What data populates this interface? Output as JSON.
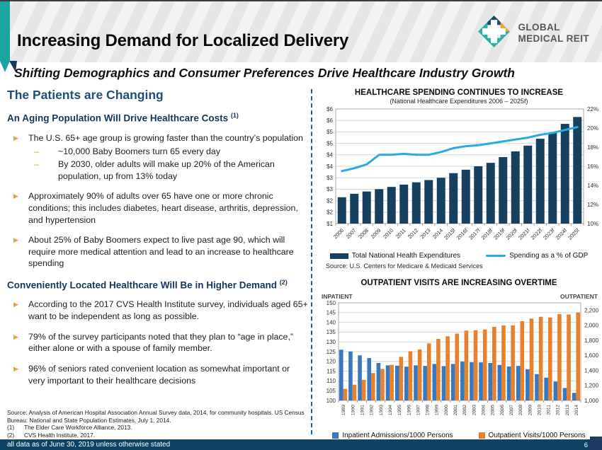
{
  "header": {
    "title": "Increasing Demand for Localized Delivery",
    "logo_line1": "GLOBAL",
    "logo_line2": "MEDICAL REIT"
  },
  "subtitle": "Shifting Demographics and Consumer Preferences Drive Healthcare Industry Growth",
  "left_panel": {
    "heading": "The Patients are Changing",
    "sections": [
      {
        "heading": "An Aging Population Will Drive Healthcare Costs",
        "sup": "(1)",
        "bullets": [
          {
            "text": "The U.S. 65+ age group is growing faster than the country’s population",
            "sub": [
              "~10,000 Baby Boomers turn 65 every day",
              "By 2030, older adults will make up 20% of the American population, up from 13% today"
            ]
          },
          {
            "text": "Approximately 90% of adults over 65 have one or more chronic conditions; this includes diabetes, heart disease, arthritis, depression, and hypertension",
            "sub": []
          },
          {
            "text": "About 25% of Baby Boomers expect to live past age 90, which will require more medical attention and lead to an increase to healthcare spending",
            "sub": []
          }
        ]
      },
      {
        "heading": "Conveniently Located Healthcare Will Be in Higher Demand",
        "sup": "(2)",
        "bullets": [
          {
            "text": "According to the 2017 CVS Health Institute survey, individuals aged 65+ want to be independent as long as possible.",
            "sub": []
          },
          {
            "text": "79% of the survey participants noted that they plan to “age in place,” either alone or with a spouse of family member.",
            "sub": []
          },
          {
            "text": "96% of seniors rated convenient location as somewhat important or very important to their healthcare decisions",
            "sub": []
          }
        ]
      }
    ],
    "sources": {
      "intro": "Source: Analysis of American Hospital Association Annual Survey data, 2014, for community hospitals. US Census Bureau: National and State Population Estimates, July 1, 2014.",
      "notes": [
        {
          "num": "(1)",
          "text": "The Elder Care Workforce Alliance, 2013."
        },
        {
          "num": "(2)",
          "text": "CVS Health Institute, 2017."
        }
      ]
    }
  },
  "footer": {
    "text": "all data as of June 30, 2019 unless otherwise stated",
    "page": "6"
  },
  "colors": {
    "accent_teal": "#1ba5a0",
    "heading_navy": "#1f4e79",
    "bullet_orange": "#e9a13b",
    "chart1_bar": "#16405e",
    "chart1_line": "#29abe2",
    "chart2_blue": "#3778be",
    "chart2_orange": "#e8812d",
    "footer_bg": "#0e4365"
  },
  "chart_data": [
    {
      "type": "bar+line",
      "title": "HEALTHCARE SPENDING CONTINUES TO INCREASE",
      "subtitle": "(National Healthcare Expenditures 2006 – 2025f)",
      "source": "Source:  U.S. Centers for Medicare & Medicaid Services",
      "categories": [
        "2006",
        "2007",
        "2008",
        "2009",
        "2010",
        "2011",
        "2012",
        "2013",
        "2014",
        "2015f",
        "2016f",
        "2017f",
        "2018f",
        "2019f",
        "2020f",
        "2021f",
        "2022f",
        "2023f",
        "2024f",
        "2025f"
      ],
      "series": [
        {
          "name": "Total National Health Expenditures",
          "type": "bar",
          "axis": "left",
          "color": "#16405e",
          "values": [
            2.15,
            2.3,
            2.4,
            2.5,
            2.6,
            2.7,
            2.8,
            2.9,
            3.0,
            3.2,
            3.35,
            3.5,
            3.65,
            3.9,
            4.15,
            4.4,
            4.7,
            4.95,
            5.35,
            5.65
          ]
        },
        {
          "name": "Spending as a % of GDP",
          "type": "line",
          "axis": "right",
          "color": "#29abe2",
          "values": [
            15.5,
            15.8,
            16.2,
            17.2,
            17.2,
            17.3,
            17.2,
            17.2,
            17.5,
            17.9,
            18.1,
            18.2,
            18.4,
            18.6,
            18.8,
            19.0,
            19.3,
            19.5,
            19.8,
            20.1
          ]
        }
      ],
      "left_axis": {
        "min": 1,
        "max": 6,
        "step": 0.5,
        "unit": "$ trillions",
        "labels": [
          "$6",
          "$6",
          "$5",
          "$5",
          "$4",
          "$4",
          "$3",
          "$3",
          "$2",
          "$2",
          "$1"
        ]
      },
      "right_axis": {
        "min": 10,
        "max": 22,
        "step": 2,
        "labels": [
          "22%",
          "20%",
          "18%",
          "16%",
          "14%",
          "12%",
          "10%"
        ],
        "label_values": [
          22,
          20,
          18,
          16,
          14,
          12,
          10
        ]
      },
      "legend_position": "bottom",
      "grid": true
    },
    {
      "type": "bar",
      "title": "OUTPATIENT VISITS ARE INCREASING OVERTIME",
      "left_label": "INPATIENT",
      "right_label": "OUTPATIENT",
      "categories": [
        "1989",
        "1990",
        "1991",
        "1992",
        "1993",
        "1994",
        "1995",
        "1996",
        "1997",
        "1998",
        "1999",
        "2000",
        "2001",
        "2002",
        "2003",
        "2004",
        "2005",
        "2006",
        "2007",
        "2008",
        "2009",
        "2010",
        "2011",
        "2012",
        "2013",
        "2014"
      ],
      "series": [
        {
          "name": "Inpatient Admissions/1000 Persons",
          "type": "bar",
          "axis": "left",
          "color": "#3778be",
          "values": [
            126,
            125.1,
            123.1,
            121.7,
            119.2,
            118,
            117.8,
            117.3,
            118,
            117.7,
            118.7,
            117.6,
            118.7,
            119.9,
            119.6,
            119.5,
            119.2,
            118.2,
            117.4,
            117.7,
            116,
            113.5,
            111.7,
            109.7,
            106.4,
            103.9
          ]
        },
        {
          "name": "Outpatient Visits/1000 Persons",
          "type": "bar",
          "axis": "right",
          "color": "#e8812d",
          "values": [
            1155,
            1210,
            1275,
            1365,
            1420,
            1475,
            1580,
            1655,
            1680,
            1760,
            1820,
            1855,
            1890,
            1930,
            1935,
            1945,
            1980,
            2000,
            2000,
            2055,
            2090,
            2115,
            2105,
            2150,
            2145,
            2170
          ]
        }
      ],
      "left_axis": {
        "min": 100,
        "max": 150,
        "step": 5,
        "labels": [
          "150",
          "145",
          "140",
          "135",
          "130",
          "125",
          "120",
          "115",
          "110",
          "105",
          "100"
        ]
      },
      "right_axis": {
        "min": 1000,
        "max": 2300,
        "step": 200,
        "labels": [
          "2,200",
          "2,000",
          "1,800",
          "1,600",
          "1,400",
          "1,200",
          "1,000"
        ],
        "label_values": [
          2200,
          2000,
          1800,
          1600,
          1400,
          1200,
          1000
        ]
      },
      "legend_position": "bottom",
      "grid": true
    }
  ]
}
